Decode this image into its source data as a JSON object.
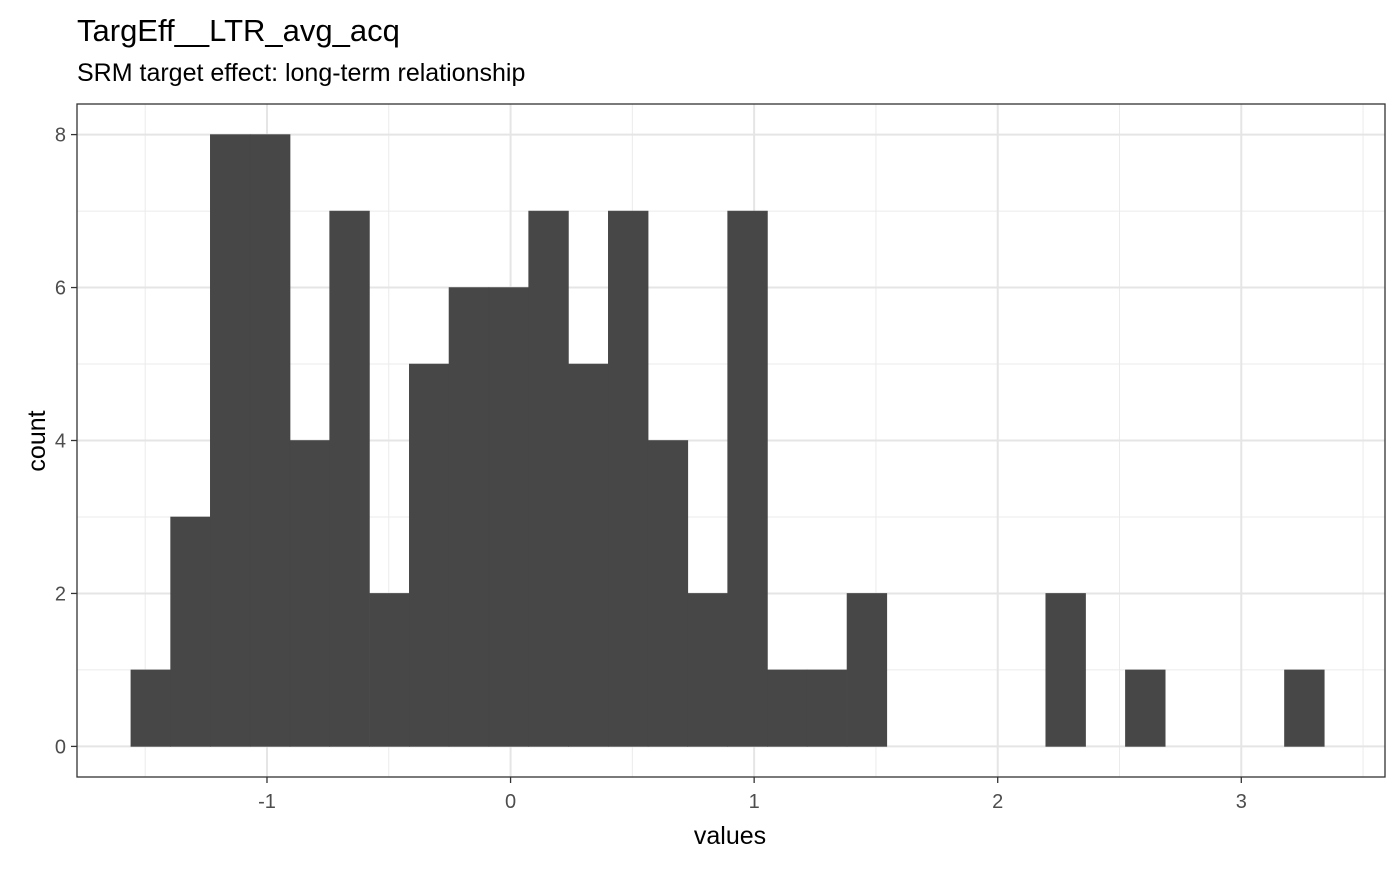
{
  "chart_data": {
    "type": "bar",
    "title": "TargEff__LTR_avg_acq",
    "subtitle": "SRM target effect: long-term relationship",
    "xlabel": "values",
    "ylabel": "count",
    "xlim": [
      -1.78,
      3.59
    ],
    "ylim": [
      -0.4,
      8.4
    ],
    "x_ticks": [
      -1,
      0,
      1,
      2,
      3
    ],
    "x_tick_labels": [
      "-1",
      "0",
      "1",
      "2",
      "3"
    ],
    "y_ticks": [
      0,
      2,
      4,
      6,
      8
    ],
    "y_tick_labels": [
      "0",
      "2",
      "4",
      "6",
      "8"
    ],
    "x_minor_grid": [
      -1.5,
      -0.5,
      0.5,
      1.5,
      2.5,
      3.5
    ],
    "y_minor_grid": [
      1,
      3,
      5,
      7
    ],
    "grid": true,
    "bar_color": "#474747",
    "bin_width": 0.1633,
    "bins": [
      {
        "center": -1.477,
        "count": 1
      },
      {
        "center": -1.314,
        "count": 3
      },
      {
        "center": -1.151,
        "count": 8
      },
      {
        "center": -0.987,
        "count": 8
      },
      {
        "center": -0.824,
        "count": 4
      },
      {
        "center": -0.661,
        "count": 7
      },
      {
        "center": -0.497,
        "count": 2
      },
      {
        "center": -0.334,
        "count": 5
      },
      {
        "center": -0.171,
        "count": 6
      },
      {
        "center": -0.007,
        "count": 6
      },
      {
        "center": 0.156,
        "count": 7
      },
      {
        "center": 0.319,
        "count": 5
      },
      {
        "center": 0.483,
        "count": 7
      },
      {
        "center": 0.646,
        "count": 4
      },
      {
        "center": 0.809,
        "count": 2
      },
      {
        "center": 0.973,
        "count": 7
      },
      {
        "center": 1.136,
        "count": 1
      },
      {
        "center": 1.299,
        "count": 1
      },
      {
        "center": 1.463,
        "count": 2
      },
      {
        "center": 1.626,
        "count": 0
      },
      {
        "center": 1.789,
        "count": 0
      },
      {
        "center": 1.953,
        "count": 0
      },
      {
        "center": 2.116,
        "count": 0
      },
      {
        "center": 2.279,
        "count": 2
      },
      {
        "center": 2.443,
        "count": 0
      },
      {
        "center": 2.606,
        "count": 1
      },
      {
        "center": 2.769,
        "count": 0
      },
      {
        "center": 2.933,
        "count": 0
      },
      {
        "center": 3.096,
        "count": 0
      },
      {
        "center": 3.259,
        "count": 1
      }
    ]
  }
}
